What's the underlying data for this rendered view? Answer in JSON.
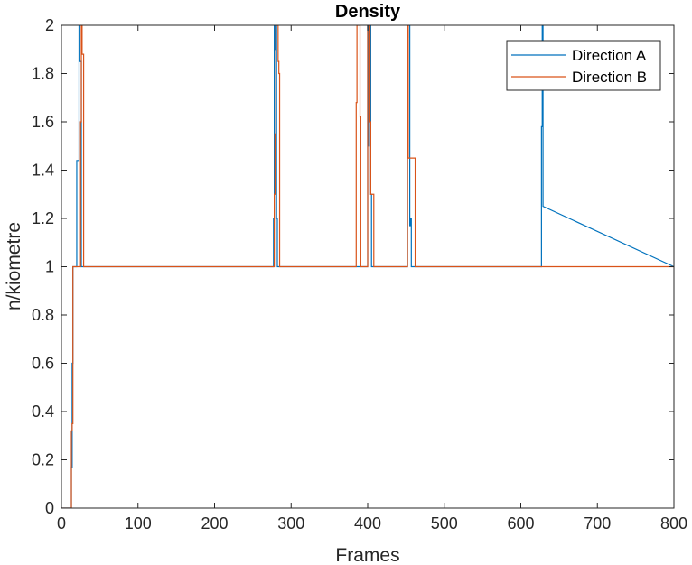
{
  "chart_data": {
    "type": "line",
    "title": "Density",
    "xlabel": "Frames",
    "ylabel": "n/kiometre",
    "xlim": [
      0,
      800
    ],
    "ylim": [
      0,
      2
    ],
    "xticks": [
      "0",
      "100",
      "200",
      "300",
      "400",
      "500",
      "600",
      "700",
      "800"
    ],
    "yticks": [
      "0",
      "0.2",
      "0.4",
      "0.6",
      "0.8",
      "1",
      "1.2",
      "1.4",
      "1.6",
      "1.8",
      "2"
    ],
    "grid": false,
    "legend_position": "top-right",
    "series": [
      {
        "name": "Direction A",
        "color": "#0072BD",
        "x": [
          0,
          13,
          13,
          14,
          14,
          15,
          15,
          20,
          20,
          23,
          23,
          24,
          24,
          26,
          26,
          277,
          277,
          278,
          278,
          279,
          279,
          280,
          280,
          281,
          281,
          282,
          282,
          400,
          400,
          401,
          401,
          402,
          402,
          404,
          404,
          405,
          405,
          452,
          452,
          453,
          453,
          455,
          455,
          456,
          456,
          457,
          457,
          627,
          627,
          628,
          628,
          629,
          629,
          800
        ],
        "y": [
          0,
          0,
          0.17,
          0.17,
          0.6,
          0.6,
          1,
          1,
          1.44,
          1.44,
          2,
          2,
          1.85,
          1.85,
          1,
          1,
          1.2,
          1.2,
          2,
          2,
          1.9,
          1.9,
          2,
          2,
          1.2,
          1.2,
          1,
          1,
          2,
          2,
          1.5,
          1.5,
          2,
          2,
          1.3,
          1.3,
          1,
          1,
          1.95,
          1.95,
          2,
          2,
          1.17,
          1.17,
          1.2,
          1.2,
          1,
          1,
          1.58,
          1.58,
          2,
          2,
          1.25,
          1
        ]
      },
      {
        "name": "Direction B",
        "color": "#D95319",
        "x": [
          0,
          13,
          13,
          14,
          14,
          15,
          15,
          25,
          25,
          26,
          26,
          27,
          27,
          29,
          29,
          278,
          278,
          279,
          279,
          280,
          280,
          283,
          283,
          284,
          284,
          285,
          285,
          385,
          385,
          386,
          386,
          390,
          390,
          391,
          391,
          400,
          400,
          403,
          403,
          404,
          404,
          408,
          408,
          452,
          452,
          453,
          453,
          462,
          462,
          463,
          463,
          800
        ],
        "y": [
          0,
          0,
          0.32,
          0.32,
          0.35,
          0.35,
          1,
          1,
          1.6,
          1.6,
          2,
          2,
          1.88,
          1.88,
          1,
          1,
          1.3,
          1.3,
          1.55,
          1.55,
          2,
          2,
          1.85,
          1.85,
          1.8,
          1.8,
          1,
          1,
          1.68,
          1.68,
          2,
          2,
          1.62,
          1.62,
          1,
          1,
          2,
          2,
          1.6,
          1.6,
          1.3,
          1.3,
          1,
          1,
          2,
          2,
          1.45,
          1.45,
          1,
          1,
          1,
          1
        ]
      }
    ]
  }
}
